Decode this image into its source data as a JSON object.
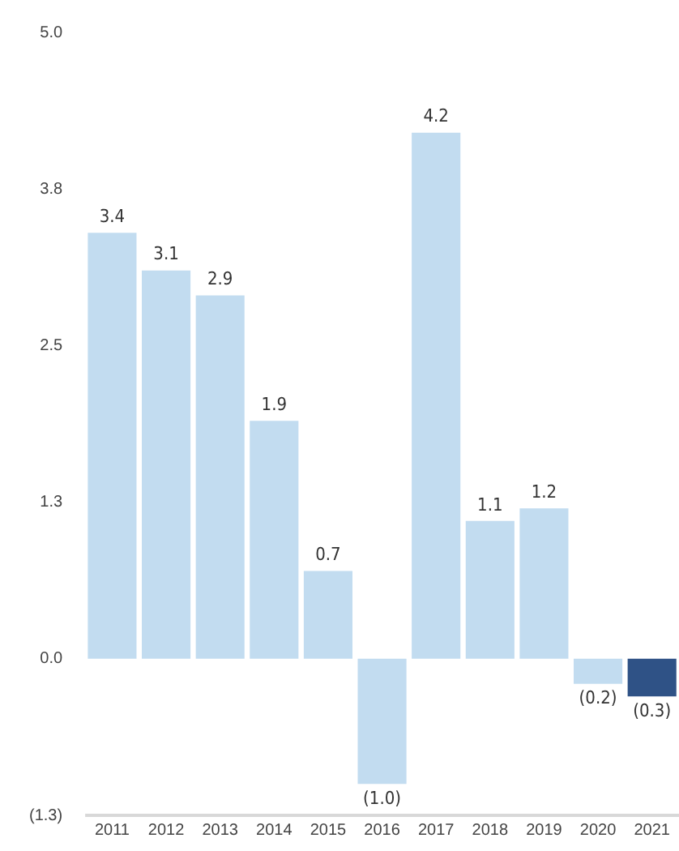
{
  "chart_data": {
    "type": "bar",
    "categories": [
      "2011",
      "2012",
      "2013",
      "2014",
      "2015",
      "2016",
      "2017",
      "2018",
      "2019",
      "2020",
      "2021"
    ],
    "values": [
      3.4,
      3.1,
      2.9,
      1.9,
      0.7,
      -1.0,
      4.2,
      1.1,
      1.2,
      -0.2,
      -0.3
    ],
    "colors": [
      "#c2dcf0",
      "#c2dcf0",
      "#c2dcf0",
      "#c2dcf0",
      "#c2dcf0",
      "#c2dcf0",
      "#c2dcf0",
      "#c2dcf0",
      "#c2dcf0",
      "#c2dcf0",
      "#2f5286"
    ],
    "value_labels": [
      "3.4",
      "3.1",
      "2.9",
      "1.9",
      "0.7",
      "(1.0)",
      "4.2",
      "1.1",
      "1.2",
      "(0.2)",
      "(0.3)"
    ],
    "ylim": [
      -1.25,
      5
    ],
    "yticks": [
      {
        "value": -1.25,
        "label": "(1.3)"
      },
      {
        "value": 0,
        "label": "0.0"
      },
      {
        "value": 1.25,
        "label": "1.3"
      },
      {
        "value": 2.5,
        "label": "2.5"
      },
      {
        "value": 3.75,
        "label": "3.8"
      },
      {
        "value": 5,
        "label": "5.0"
      }
    ],
    "grid": false,
    "legend": false
  }
}
